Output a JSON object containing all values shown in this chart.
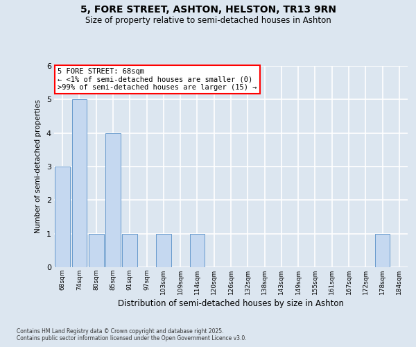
{
  "title1": "5, FORE STREET, ASHTON, HELSTON, TR13 9RN",
  "title2": "Size of property relative to semi-detached houses in Ashton",
  "xlabel": "Distribution of semi-detached houses by size in Ashton",
  "ylabel": "Number of semi-detached properties",
  "categories": [
    "68sqm",
    "74sqm",
    "80sqm",
    "85sqm",
    "91sqm",
    "97sqm",
    "103sqm",
    "109sqm",
    "114sqm",
    "120sqm",
    "126sqm",
    "132sqm",
    "138sqm",
    "143sqm",
    "149sqm",
    "155sqm",
    "161sqm",
    "167sqm",
    "172sqm",
    "178sqm",
    "184sqm"
  ],
  "values": [
    3,
    5,
    1,
    4,
    1,
    0,
    1,
    0,
    1,
    0,
    0,
    0,
    0,
    0,
    0,
    0,
    0,
    0,
    0,
    1,
    0
  ],
  "bar_color": "#c5d8f0",
  "bar_edge_color": "#6699cc",
  "background_color": "#dce6f0",
  "ylim": [
    0,
    6
  ],
  "yticks": [
    0,
    1,
    2,
    3,
    4,
    5,
    6
  ],
  "annotation_title": "5 FORE STREET: 68sqm",
  "annotation_line1": "← <1% of semi-detached houses are smaller (0)",
  "annotation_line2": ">99% of semi-detached houses are larger (15) →",
  "footer_line1": "Contains HM Land Registry data © Crown copyright and database right 2025.",
  "footer_line2": "Contains public sector information licensed under the Open Government Licence v3.0."
}
